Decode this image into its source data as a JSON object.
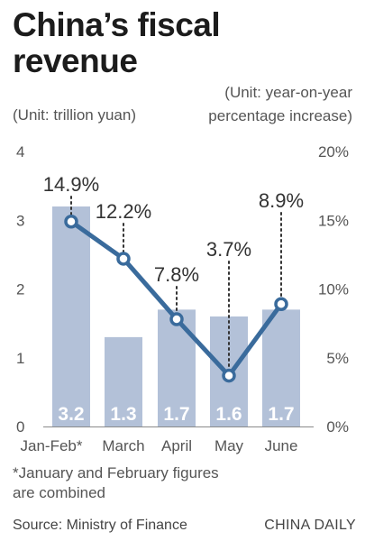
{
  "title": [
    "China’s fiscal",
    "revenue"
  ],
  "unit_left": "(Unit: trillion yuan)",
  "unit_right": [
    "(Unit: year-on-year",
    "percentage increase)"
  ],
  "footnote": "*January and February figures are combined",
  "source": "Source: Ministry of Finance",
  "brand": "CHINA DAILY",
  "colors": {
    "bar": "#b3c1d8",
    "line": "#3a6b9c",
    "bar_label": "#ffffff",
    "text": "#555555"
  },
  "chart_data": {
    "type": "bar",
    "categories": [
      "Jan-Feb*",
      "March",
      "April",
      "May",
      "June"
    ],
    "bar_values": [
      3.2,
      1.3,
      1.7,
      1.6,
      1.7
    ],
    "bar_labels": [
      "3.2",
      "1.3",
      "1.7",
      "1.6",
      "1.7"
    ],
    "line_values": [
      14.9,
      12.2,
      7.8,
      3.7,
      8.9
    ],
    "line_labels": [
      "14.9%",
      "12.2%",
      "7.8%",
      "3.7%",
      "8.9%"
    ],
    "left_axis": {
      "ticks": [
        "0",
        "1",
        "2",
        "3",
        "4"
      ],
      "range": [
        0,
        4
      ]
    },
    "right_axis": {
      "ticks": [
        "0%",
        "5%",
        "10%",
        "15%",
        "20%"
      ],
      "range": [
        0,
        20
      ]
    },
    "grid": false
  }
}
